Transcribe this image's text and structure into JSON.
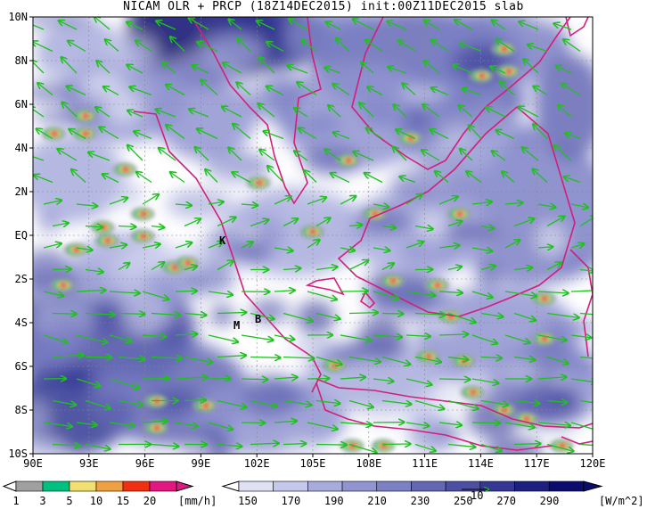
{
  "title": "NICAM OLR + PRCP (18Z14DEC2015) init:00Z11DEC2015 slab",
  "map": {
    "lon_labels": [
      "90E",
      "93E",
      "96E",
      "99E",
      "102E",
      "105E",
      "108E",
      "111E",
      "114E",
      "117E",
      "120E"
    ],
    "lat_labels": [
      "10N",
      "8N",
      "6N",
      "4N",
      "2N",
      "EQ",
      "2S",
      "4S",
      "6S",
      "8S",
      "10S"
    ],
    "site_markers": [
      "K",
      "M",
      "B"
    ]
  },
  "precip_colorbar": {
    "ticks": [
      "1",
      "3",
      "5",
      "10",
      "15",
      "20"
    ],
    "unit": "[mm/h]",
    "colors": [
      "#a0a0a0",
      "#00c080",
      "#f0e070",
      "#f0a040",
      "#f03010",
      "#e01880"
    ]
  },
  "olr_colorbar": {
    "ticks": [
      "150",
      "170",
      "190",
      "210",
      "230",
      "250",
      "270",
      "290"
    ],
    "unit": "[W/m^2]",
    "vector_ref": "10",
    "colors": [
      "#ffffff",
      "#e0e2f4",
      "#c4c8ea",
      "#a8acdc",
      "#9094d0",
      "#7c80c4",
      "#6468b4",
      "#4c50a4",
      "#343894",
      "#1c2080",
      "#0a0c70"
    ]
  },
  "colors": {
    "coastline": "#d0207a",
    "wind_vector": "#20c020",
    "frame": "#000000"
  }
}
